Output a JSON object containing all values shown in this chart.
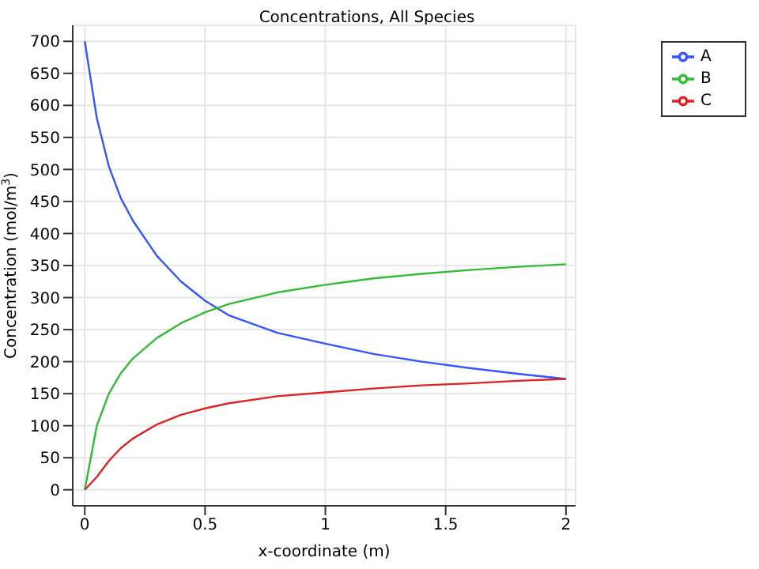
{
  "chart_data": {
    "type": "line",
    "title": "Concentrations, All Species",
    "xlabel": "x-coordinate (m)",
    "ylabel": "Concentration (mol/m$^{3}$)",
    "x": [
      0,
      0.05,
      0.1,
      0.15,
      0.2,
      0.3,
      0.4,
      0.5,
      0.6,
      0.8,
      1.0,
      1.2,
      1.4,
      1.6,
      1.8,
      2.0
    ],
    "series": [
      {
        "name": "A",
        "color": "#3355ff",
        "values": [
          700,
          580,
          505,
          455,
          420,
          365,
          325,
          295,
          272,
          245,
          228,
          212,
          200,
          190,
          181,
          173
        ]
      },
      {
        "name": "B",
        "color": "#33bb33",
        "values": [
          0,
          100,
          150,
          182,
          205,
          237,
          260,
          277,
          290,
          308,
          320,
          330,
          337,
          343,
          348,
          352
        ]
      },
      {
        "name": "C",
        "color": "#dd2222",
        "values": [
          0,
          20,
          45,
          65,
          80,
          102,
          117,
          127,
          135,
          146,
          152,
          158,
          163,
          166,
          170,
          173
        ]
      }
    ],
    "xlim": [
      -0.05,
      2.04
    ],
    "xticks": [
      0,
      0.5,
      1,
      1.5,
      2
    ],
    "ylim": [
      -25,
      725
    ],
    "yticks": [
      0,
      50,
      100,
      150,
      200,
      250,
      300,
      350,
      400,
      450,
      500,
      550,
      600,
      650,
      700
    ],
    "grid": true,
    "legend": "top right",
    "marker": "none",
    "line_style": "solid"
  }
}
